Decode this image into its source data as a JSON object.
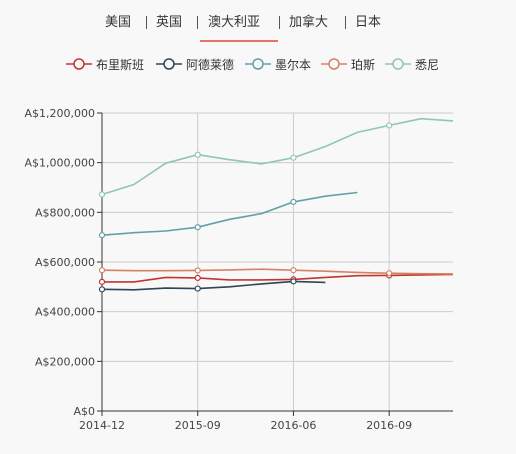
{
  "tabs": [
    {
      "label": "美国",
      "active": false
    },
    {
      "label": "英国",
      "active": false
    },
    {
      "label": "澳大利亚",
      "active": true
    },
    {
      "label": "加拿大",
      "active": false
    },
    {
      "label": "日本",
      "active": false
    }
  ],
  "colors": {
    "tab_underline": "#e8736a",
    "axis": "#333333",
    "grid": "#cccccc"
  },
  "chart_data": {
    "type": "line",
    "title": "",
    "xlabel": "",
    "ylabel": "",
    "x_ticks": [
      "2014-12",
      "2015-09",
      "2016-06",
      "2016-09"
    ],
    "y_ticks": [
      "A$0",
      "A$200,000",
      "A$400,000",
      "A$600,000",
      "A$800,000",
      "A$1,000,000",
      "A$1,200,000"
    ],
    "ylim": [
      0,
      1200000
    ],
    "grid": true,
    "legend_position": "top",
    "series": [
      {
        "name": "布里斯班",
        "color": "#c23531",
        "values": [
          520000,
          520000,
          538000,
          536000,
          528000,
          528000,
          530000,
          538000,
          545000,
          546000,
          548000,
          550000
        ]
      },
      {
        "name": "阿德莱德",
        "color": "#2f4554",
        "values": [
          490000,
          488000,
          495000,
          493000,
          500000,
          512000,
          522000,
          518000,
          null,
          null,
          null,
          null
        ]
      },
      {
        "name": "墨尔本",
        "color": "#61a0a8",
        "values": [
          708000,
          718000,
          725000,
          740000,
          772000,
          795000,
          842000,
          865000,
          880000,
          null,
          null,
          null
        ]
      },
      {
        "name": "珀斯",
        "color": "#d48265",
        "values": [
          567000,
          565000,
          565000,
          566000,
          568000,
          571000,
          567000,
          563000,
          558000,
          555000,
          553000,
          552000
        ]
      },
      {
        "name": "悉尼",
        "color": "#91c7ae",
        "values": [
          872000,
          912000,
          998000,
          1032000,
          1012000,
          995000,
          1020000,
          1065000,
          1122000,
          1150000,
          1177000,
          1168000
        ]
      }
    ],
    "point_markers_at": [
      0,
      3,
      6,
      9
    ]
  }
}
